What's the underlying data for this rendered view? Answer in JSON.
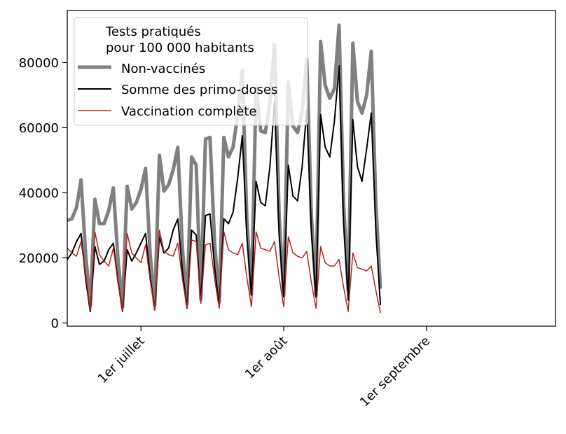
{
  "chart_data": {
    "type": "line",
    "title": "",
    "xlabel": "",
    "ylabel": "",
    "legend_title": [
      "Tests pratiqués",
      "pour 100 000 habitants"
    ],
    "legend_position": "top-left",
    "x_tick_labels": [
      {
        "date": "2021-07-01",
        "label": "1er juillet"
      },
      {
        "date": "2021-08-01",
        "label": "1er août"
      },
      {
        "date": "2021-09-01",
        "label": "1er septembre"
      }
    ],
    "y_ticks": [
      0,
      20000,
      40000,
      60000,
      80000
    ],
    "xlim": [
      "2021-06-15",
      "2021-09-29"
    ],
    "ylim": [
      -1000,
      96000
    ],
    "grid": false,
    "series": [
      {
        "name": "Non-vaccinés",
        "color": "#808080",
        "values": [
          [
            "2021-06-15",
            31500
          ],
          [
            "2021-06-16",
            32000
          ],
          [
            "2021-06-17",
            35500
          ],
          [
            "2021-06-18",
            44000
          ],
          [
            "2021-06-19",
            21000
          ],
          [
            "2021-06-20",
            5500
          ],
          [
            "2021-06-21",
            38000
          ],
          [
            "2021-06-22",
            30500
          ],
          [
            "2021-06-23",
            30500
          ],
          [
            "2021-06-24",
            34500
          ],
          [
            "2021-06-25",
            41500
          ],
          [
            "2021-06-26",
            20000
          ],
          [
            "2021-06-27",
            5000
          ],
          [
            "2021-06-28",
            42000
          ],
          [
            "2021-06-29",
            35000
          ],
          [
            "2021-06-30",
            37000
          ],
          [
            "2021-07-01",
            41000
          ],
          [
            "2021-07-02",
            47500
          ],
          [
            "2021-07-03",
            21000
          ],
          [
            "2021-07-04",
            5500
          ],
          [
            "2021-07-05",
            51500
          ],
          [
            "2021-07-06",
            40500
          ],
          [
            "2021-07-07",
            42500
          ],
          [
            "2021-07-08",
            47000
          ],
          [
            "2021-07-09",
            54000
          ],
          [
            "2021-07-10",
            23000
          ],
          [
            "2021-07-11",
            6000
          ],
          [
            "2021-07-12",
            51000
          ],
          [
            "2021-07-13",
            48500
          ],
          [
            "2021-07-14",
            7500
          ],
          [
            "2021-07-15",
            56500
          ],
          [
            "2021-07-16",
            57000
          ],
          [
            "2021-07-17",
            24500
          ],
          [
            "2021-07-18",
            6500
          ],
          [
            "2021-07-19",
            57000
          ],
          [
            "2021-07-20",
            51000
          ],
          [
            "2021-07-21",
            54000
          ],
          [
            "2021-07-22",
            64000
          ],
          [
            "2021-07-23",
            77500
          ],
          [
            "2021-07-24",
            32000
          ],
          [
            "2021-07-25",
            9000
          ],
          [
            "2021-07-26",
            72500
          ],
          [
            "2021-07-27",
            59000
          ],
          [
            "2021-07-28",
            58500
          ],
          [
            "2021-07-29",
            67500
          ],
          [
            "2021-07-30",
            85500
          ],
          [
            "2021-07-31",
            33000
          ],
          [
            "2021-08-01",
            8500
          ],
          [
            "2021-08-02",
            74000
          ],
          [
            "2021-08-03",
            60500
          ],
          [
            "2021-08-04",
            58500
          ],
          [
            "2021-08-05",
            65000
          ],
          [
            "2021-08-06",
            81000
          ],
          [
            "2021-08-07",
            33000
          ],
          [
            "2021-08-08",
            9000
          ],
          [
            "2021-08-09",
            86500
          ],
          [
            "2021-08-10",
            73000
          ],
          [
            "2021-08-11",
            69000
          ],
          [
            "2021-08-12",
            72000
          ],
          [
            "2021-08-13",
            91500
          ],
          [
            "2021-08-14",
            37000
          ],
          [
            "2021-08-15",
            10000
          ],
          [
            "2021-08-16",
            86000
          ],
          [
            "2021-08-17",
            68000
          ],
          [
            "2021-08-18",
            64500
          ],
          [
            "2021-08-19",
            70000
          ],
          [
            "2021-08-20",
            83500
          ],
          [
            "2021-08-21",
            36500
          ],
          [
            "2021-08-22",
            10500
          ]
        ]
      },
      {
        "name": "Somme des primo-doses",
        "color": "#000000",
        "values": [
          [
            "2021-06-15",
            19500
          ],
          [
            "2021-06-16",
            21500
          ],
          [
            "2021-06-17",
            25000
          ],
          [
            "2021-06-18",
            27500
          ],
          [
            "2021-06-19",
            13500
          ],
          [
            "2021-06-20",
            3500
          ],
          [
            "2021-06-21",
            23500
          ],
          [
            "2021-06-22",
            18000
          ],
          [
            "2021-06-23",
            19000
          ],
          [
            "2021-06-24",
            22500
          ],
          [
            "2021-06-25",
            24500
          ],
          [
            "2021-06-26",
            13000
          ],
          [
            "2021-06-27",
            3500
          ],
          [
            "2021-06-28",
            22500
          ],
          [
            "2021-06-29",
            19000
          ],
          [
            "2021-06-30",
            21500
          ],
          [
            "2021-07-01",
            24500
          ],
          [
            "2021-07-02",
            27500
          ],
          [
            "2021-07-03",
            14000
          ],
          [
            "2021-07-04",
            4000
          ],
          [
            "2021-07-05",
            26500
          ],
          [
            "2021-07-06",
            21500
          ],
          [
            "2021-07-07",
            23000
          ],
          [
            "2021-07-08",
            28500
          ],
          [
            "2021-07-09",
            32000
          ],
          [
            "2021-07-10",
            16000
          ],
          [
            "2021-07-11",
            4500
          ],
          [
            "2021-07-12",
            28500
          ],
          [
            "2021-07-13",
            27000
          ],
          [
            "2021-07-14",
            6500
          ],
          [
            "2021-07-15",
            33000
          ],
          [
            "2021-07-16",
            33500
          ],
          [
            "2021-07-17",
            17000
          ],
          [
            "2021-07-18",
            5000
          ],
          [
            "2021-07-19",
            32000
          ],
          [
            "2021-07-20",
            30500
          ],
          [
            "2021-07-21",
            34000
          ],
          [
            "2021-07-22",
            44500
          ],
          [
            "2021-07-23",
            57500
          ],
          [
            "2021-07-24",
            26500
          ],
          [
            "2021-07-25",
            8500
          ],
          [
            "2021-07-26",
            43500
          ],
          [
            "2021-07-27",
            37000
          ],
          [
            "2021-07-28",
            36000
          ],
          [
            "2021-07-29",
            48000
          ],
          [
            "2021-07-30",
            68000
          ],
          [
            "2021-07-31",
            27000
          ],
          [
            "2021-08-01",
            8000
          ],
          [
            "2021-08-02",
            48500
          ],
          [
            "2021-08-03",
            39000
          ],
          [
            "2021-08-04",
            37500
          ],
          [
            "2021-08-05",
            48000
          ],
          [
            "2021-08-06",
            65500
          ],
          [
            "2021-08-07",
            28000
          ],
          [
            "2021-08-08",
            8000
          ],
          [
            "2021-08-09",
            64000
          ],
          [
            "2021-08-10",
            54000
          ],
          [
            "2021-08-11",
            51000
          ],
          [
            "2021-08-12",
            62000
          ],
          [
            "2021-08-13",
            79000
          ],
          [
            "2021-08-14",
            30500
          ],
          [
            "2021-08-15",
            7000
          ],
          [
            "2021-08-16",
            62500
          ],
          [
            "2021-08-17",
            48000
          ],
          [
            "2021-08-18",
            43500
          ],
          [
            "2021-08-19",
            53500
          ],
          [
            "2021-08-20",
            64500
          ],
          [
            "2021-08-21",
            28000
          ],
          [
            "2021-08-22",
            5500
          ]
        ]
      },
      {
        "name": "Vaccination complète",
        "color": "#b22222",
        "values": [
          [
            "2021-06-15",
            23000
          ],
          [
            "2021-06-16",
            21500
          ],
          [
            "2021-06-17",
            20500
          ],
          [
            "2021-06-18",
            25000
          ],
          [
            "2021-06-19",
            15000
          ],
          [
            "2021-06-20",
            4000
          ],
          [
            "2021-06-21",
            28000
          ],
          [
            "2021-06-22",
            21000
          ],
          [
            "2021-06-23",
            19000
          ],
          [
            "2021-06-24",
            17500
          ],
          [
            "2021-06-25",
            23000
          ],
          [
            "2021-06-26",
            12500
          ],
          [
            "2021-06-27",
            3500
          ],
          [
            "2021-06-28",
            27500
          ],
          [
            "2021-06-29",
            21500
          ],
          [
            "2021-06-30",
            20000
          ],
          [
            "2021-07-01",
            18500
          ],
          [
            "2021-07-02",
            24000
          ],
          [
            "2021-07-03",
            13000
          ],
          [
            "2021-07-04",
            4000
          ],
          [
            "2021-07-05",
            28500
          ],
          [
            "2021-07-06",
            22000
          ],
          [
            "2021-07-07",
            21000
          ],
          [
            "2021-07-08",
            20500
          ],
          [
            "2021-07-09",
            24500
          ],
          [
            "2021-07-10",
            13500
          ],
          [
            "2021-07-11",
            4500
          ],
          [
            "2021-07-12",
            25500
          ],
          [
            "2021-07-13",
            25000
          ],
          [
            "2021-07-14",
            6000
          ],
          [
            "2021-07-15",
            24000
          ],
          [
            "2021-07-16",
            24500
          ],
          [
            "2021-07-17",
            13500
          ],
          [
            "2021-07-18",
            4500
          ],
          [
            "2021-07-19",
            28000
          ],
          [
            "2021-07-20",
            22500
          ],
          [
            "2021-07-21",
            21500
          ],
          [
            "2021-07-22",
            21000
          ],
          [
            "2021-07-23",
            24500
          ],
          [
            "2021-07-24",
            14000
          ],
          [
            "2021-07-25",
            5000
          ],
          [
            "2021-07-26",
            28000
          ],
          [
            "2021-07-27",
            23000
          ],
          [
            "2021-07-28",
            22500
          ],
          [
            "2021-07-29",
            22000
          ],
          [
            "2021-07-30",
            25000
          ],
          [
            "2021-07-31",
            14000
          ],
          [
            "2021-08-01",
            5000
          ],
          [
            "2021-08-02",
            26500
          ],
          [
            "2021-08-03",
            21500
          ],
          [
            "2021-08-04",
            20500
          ],
          [
            "2021-08-05",
            20000
          ],
          [
            "2021-08-06",
            22000
          ],
          [
            "2021-08-07",
            12500
          ],
          [
            "2021-08-08",
            4500
          ],
          [
            "2021-08-09",
            23500
          ],
          [
            "2021-08-10",
            18500
          ],
          [
            "2021-08-11",
            17500
          ],
          [
            "2021-08-12",
            17500
          ],
          [
            "2021-08-13",
            19500
          ],
          [
            "2021-08-14",
            11000
          ],
          [
            "2021-08-15",
            3500
          ],
          [
            "2021-08-16",
            21500
          ],
          [
            "2021-08-17",
            17000
          ],
          [
            "2021-08-18",
            16500
          ],
          [
            "2021-08-19",
            16000
          ],
          [
            "2021-08-20",
            17500
          ],
          [
            "2021-08-21",
            10000
          ],
          [
            "2021-08-22",
            3000
          ]
        ]
      }
    ]
  }
}
